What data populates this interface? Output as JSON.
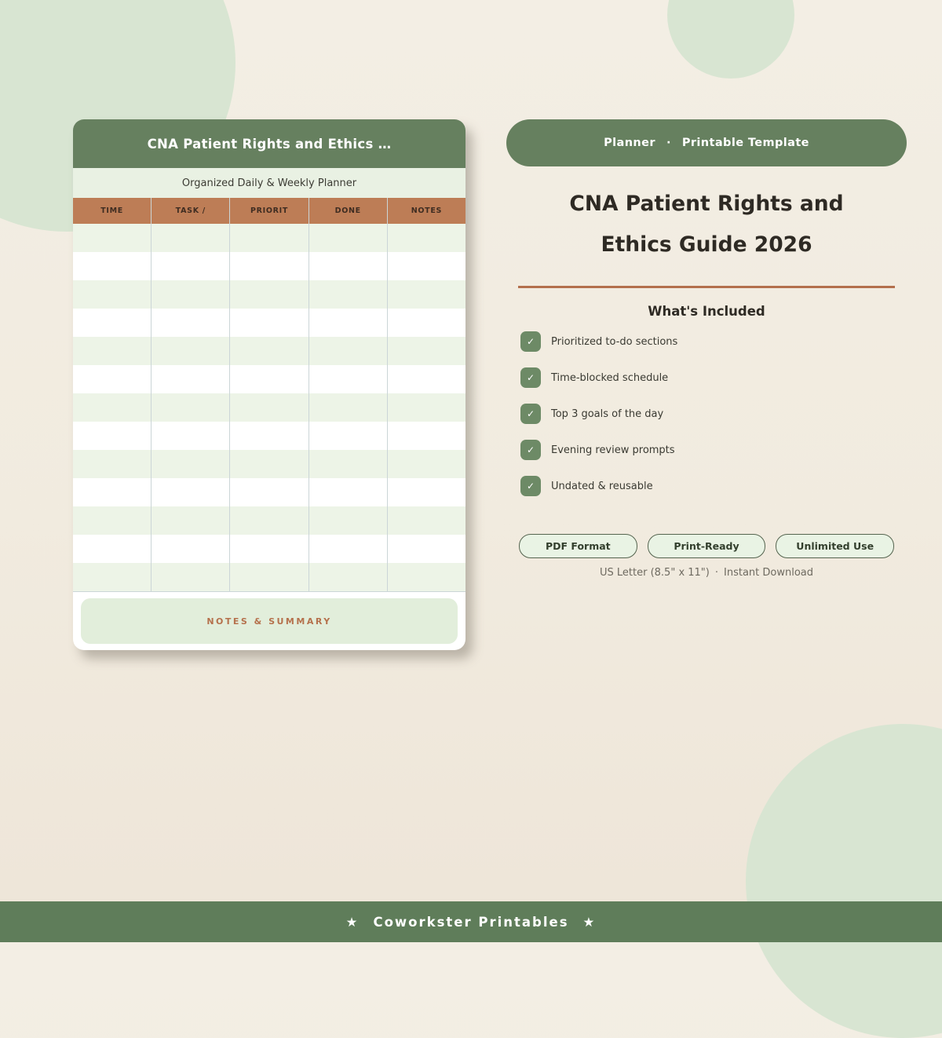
{
  "colors": {
    "brand_green": "#66805f",
    "footer_green": "#5f7d5a",
    "checkbox_green": "#6d8a66",
    "terracotta": "#bd7d56",
    "terracotta_line": "#b3704d",
    "sage_blob": "#d8e5d2",
    "row_green": "#edf4e7",
    "page_beige": "#f1ebdf"
  },
  "preview_card": {
    "title": "CNA Patient Rights and Ethics …",
    "subtitle": "Organized Daily & Weekly Planner",
    "table": {
      "columns": [
        "TIME",
        "TASK /",
        "PRIORIT",
        "DONE",
        "NOTES"
      ],
      "row_count": 13
    },
    "notes_label": "NOTES & SUMMARY"
  },
  "details": {
    "badge": {
      "category": "Planner",
      "separator": "·",
      "type": "Printable Template"
    },
    "title_line1": "CNA Patient Rights and",
    "title_line2": "Ethics Guide 2026",
    "included_heading": "What's Included",
    "check_glyph": "✓",
    "features": [
      "Prioritized to-do sections",
      "Time-blocked schedule",
      "Top 3 goals of the day",
      "Evening review prompts",
      "Undated & reusable"
    ],
    "chips": [
      "PDF Format",
      "Print-Ready",
      "Unlimited Use"
    ],
    "meta": {
      "size": "US Letter (8.5\" x 11\")",
      "separator": "·",
      "delivery": "Instant Download"
    }
  },
  "footer": {
    "star": "★",
    "label": "Coworkster Printables"
  }
}
